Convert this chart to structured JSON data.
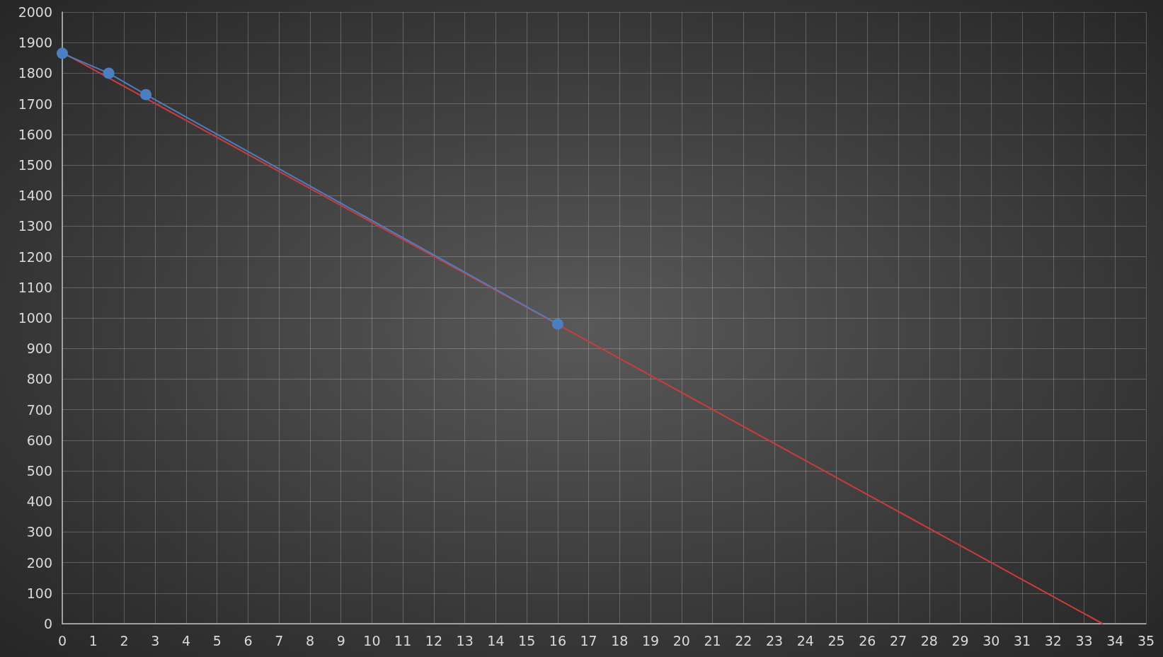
{
  "chart_data": {
    "type": "line",
    "marker": "circle",
    "grid": true,
    "xlim": [
      0,
      35
    ],
    "xticks": [
      0,
      1,
      2,
      3,
      4,
      5,
      6,
      7,
      8,
      9,
      10,
      11,
      12,
      13,
      14,
      15,
      16,
      17,
      18,
      19,
      20,
      21,
      22,
      23,
      24,
      25,
      26,
      27,
      28,
      29,
      30,
      31,
      32,
      33,
      34,
      35
    ],
    "ylim": [
      0,
      2000
    ],
    "yticks": [
      0,
      100,
      200,
      300,
      400,
      500,
      600,
      700,
      800,
      900,
      1000,
      1100,
      1200,
      1300,
      1400,
      1500,
      1600,
      1700,
      1800,
      1900,
      2000
    ],
    "series": [
      {
        "color": "#4a7fc4",
        "x": [
          0,
          1.5,
          2.7,
          16
        ],
        "values": [
          1865,
          1800,
          1730,
          980
        ]
      },
      {
        "type": "line",
        "marker": "none",
        "color": "#d03a3a",
        "x": [
          0,
          33.6
        ],
        "values": [
          1868,
          0
        ]
      }
    ]
  }
}
